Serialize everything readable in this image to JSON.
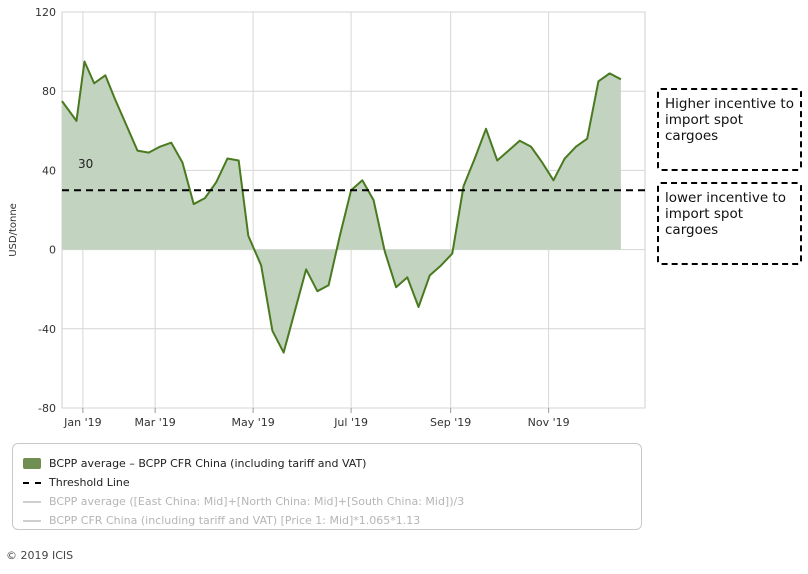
{
  "chart_data": {
    "type": "area",
    "title": "",
    "xlabel": "",
    "ylabel": "USD/tonne",
    "ylim": [
      -80,
      120
    ],
    "yticks": [
      -80,
      -40,
      0,
      40,
      80,
      120
    ],
    "xlim": [
      "2019-01-02",
      "2019-12-31"
    ],
    "xticks": [
      {
        "date": "2019-01-15",
        "label": "Jan '19"
      },
      {
        "date": "2019-03-01",
        "label": "Mar '19"
      },
      {
        "date": "2019-05-01",
        "label": "May '19"
      },
      {
        "date": "2019-07-01",
        "label": "Jul '19"
      },
      {
        "date": "2019-09-01",
        "label": "Sep '19"
      },
      {
        "date": "2019-11-01",
        "label": "Nov '19"
      }
    ],
    "grid": true,
    "legend_position": "bottom",
    "series": [
      {
        "name": "BCPP average – BCPP CFR China (including tariff and VAT)",
        "style": "area",
        "color": "#4a7a1f",
        "fill": "#c2d3c0",
        "points": [
          {
            "x": "2019-01-02",
            "y": 75
          },
          {
            "x": "2019-01-11",
            "y": 65
          },
          {
            "x": "2019-01-16",
            "y": 95
          },
          {
            "x": "2019-01-22",
            "y": 84
          },
          {
            "x": "2019-01-29",
            "y": 88
          },
          {
            "x": "2019-02-04",
            "y": 76
          },
          {
            "x": "2019-02-18",
            "y": 50
          },
          {
            "x": "2019-02-25",
            "y": 49
          },
          {
            "x": "2019-03-04",
            "y": 52
          },
          {
            "x": "2019-03-11",
            "y": 54
          },
          {
            "x": "2019-03-18",
            "y": 44
          },
          {
            "x": "2019-03-25",
            "y": 23
          },
          {
            "x": "2019-04-01",
            "y": 26
          },
          {
            "x": "2019-04-08",
            "y": 34
          },
          {
            "x": "2019-04-15",
            "y": 46
          },
          {
            "x": "2019-04-22",
            "y": 45
          },
          {
            "x": "2019-04-28",
            "y": 7
          },
          {
            "x": "2019-05-06",
            "y": -8
          },
          {
            "x": "2019-05-13",
            "y": -41
          },
          {
            "x": "2019-05-20",
            "y": -52
          },
          {
            "x": "2019-06-03",
            "y": -10
          },
          {
            "x": "2019-06-10",
            "y": -21
          },
          {
            "x": "2019-06-17",
            "y": -18
          },
          {
            "x": "2019-06-24",
            "y": 7
          },
          {
            "x": "2019-07-01",
            "y": 30
          },
          {
            "x": "2019-07-08",
            "y": 35
          },
          {
            "x": "2019-07-15",
            "y": 25
          },
          {
            "x": "2019-07-22",
            "y": -1
          },
          {
            "x": "2019-07-29",
            "y": -19
          },
          {
            "x": "2019-08-05",
            "y": -14
          },
          {
            "x": "2019-08-12",
            "y": -29
          },
          {
            "x": "2019-08-19",
            "y": -13
          },
          {
            "x": "2019-08-26",
            "y": -8
          },
          {
            "x": "2019-09-02",
            "y": -2
          },
          {
            "x": "2019-09-09",
            "y": 32
          },
          {
            "x": "2019-09-16",
            "y": 46
          },
          {
            "x": "2019-09-23",
            "y": 61
          },
          {
            "x": "2019-09-30",
            "y": 45
          },
          {
            "x": "2019-10-14",
            "y": 55
          },
          {
            "x": "2019-10-21",
            "y": 52
          },
          {
            "x": "2019-10-28",
            "y": 44
          },
          {
            "x": "2019-11-04",
            "y": 35
          },
          {
            "x": "2019-11-11",
            "y": 46
          },
          {
            "x": "2019-11-18",
            "y": 52
          },
          {
            "x": "2019-11-25",
            "y": 56
          },
          {
            "x": "2019-12-02",
            "y": 85
          },
          {
            "x": "2019-12-09",
            "y": 89
          },
          {
            "x": "2019-12-16",
            "y": 86
          }
        ]
      },
      {
        "name": "Threshold Line",
        "style": "dashed",
        "color": "#000000",
        "value": 30,
        "value_label": "30"
      },
      {
        "name": "BCPP average ([East China: Mid]+[North China: Mid]+[South China: Mid])/3",
        "style": "hidden",
        "color": "#cfcfcf"
      },
      {
        "name": "BCPP CFR China (including tariff and VAT) [Price 1: Mid]*1.065*1.13",
        "style": "hidden",
        "color": "#cfcfcf"
      }
    ],
    "annotations": [
      {
        "text": "Higher incentive to import spot cargoes",
        "region": "above threshold"
      },
      {
        "text": "lower incentive to import spot cargoes",
        "region": "below threshold"
      }
    ]
  },
  "copyright": "© 2019 ICIS"
}
